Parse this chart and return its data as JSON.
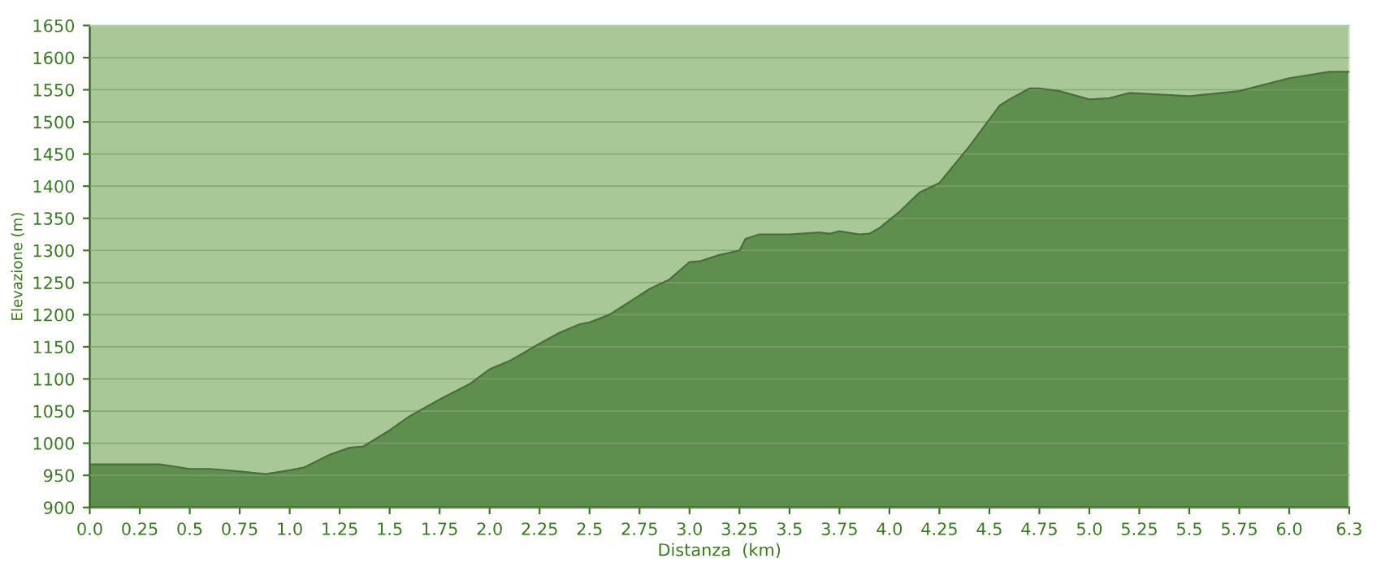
{
  "chart_data": {
    "type": "area",
    "xlabel": "Distanza  (km)",
    "ylabel": "Elevazione (m)",
    "x": [
      0,
      0.35,
      0.5,
      0.6,
      0.75,
      0.88,
      1.0,
      1.07,
      1.2,
      1.3,
      1.37,
      1.5,
      1.6,
      1.75,
      1.9,
      2.0,
      2.1,
      2.25,
      2.35,
      2.45,
      2.5,
      2.6,
      2.7,
      2.8,
      2.9,
      3.0,
      3.05,
      3.15,
      3.25,
      3.28,
      3.35,
      3.5,
      3.65,
      3.7,
      3.75,
      3.85,
      3.9,
      3.95,
      4.05,
      4.15,
      4.25,
      4.4,
      4.55,
      4.6,
      4.7,
      4.75,
      4.85,
      5.0,
      5.1,
      5.2,
      5.5,
      5.75,
      6.0,
      6.2,
      6.3
    ],
    "series": [
      {
        "color": "#5f8f4e",
        "values": [
          967,
          967,
          960,
          960,
          956,
          952,
          958,
          962,
          982,
          993,
          995,
          1020,
          1042,
          1068,
          1092,
          1115,
          1128,
          1155,
          1172,
          1185,
          1188,
          1200,
          1220,
          1240,
          1255,
          1282,
          1283,
          1293,
          1300,
          1318,
          1325,
          1325,
          1328,
          1326,
          1330,
          1325,
          1326,
          1335,
          1360,
          1390,
          1405,
          1462,
          1525,
          1535,
          1552,
          1552,
          1548,
          1535,
          1537,
          1545,
          1540,
          1548,
          1568,
          1578,
          1578
        ]
      }
    ],
    "xlim": [
      0,
      6.3
    ],
    "ylim": [
      900,
      1650
    ],
    "xticks": [
      {
        "value": 0,
        "label": "0.0"
      },
      0.25,
      {
        "value": 0.5,
        "label": "0.5"
      },
      0.75,
      {
        "value": 1,
        "label": "1.0"
      },
      1.25,
      {
        "value": 1.5,
        "label": "1.5"
      },
      1.75,
      {
        "value": 2,
        "label": "2.0"
      },
      2.25,
      {
        "value": 2.5,
        "label": "2.5"
      },
      2.75,
      {
        "value": 3,
        "label": "3.0"
      },
      3.25,
      {
        "value": 3.5,
        "label": "3.5"
      },
      3.75,
      {
        "value": 4,
        "label": "4.0"
      },
      4.25,
      {
        "value": 4.5,
        "label": "4.5"
      },
      4.75,
      {
        "value": 5,
        "label": "5.0"
      },
      5.25,
      {
        "value": 5.5,
        "label": "5.5"
      },
      5.75,
      {
        "value": 6,
        "label": "6.0"
      },
      6.3
    ],
    "yticks": [
      900,
      950,
      1000,
      1050,
      1100,
      1150,
      1200,
      1250,
      1300,
      1350,
      1400,
      1450,
      1500,
      1550,
      1600,
      1650
    ],
    "grid": "y",
    "legend": false
  }
}
